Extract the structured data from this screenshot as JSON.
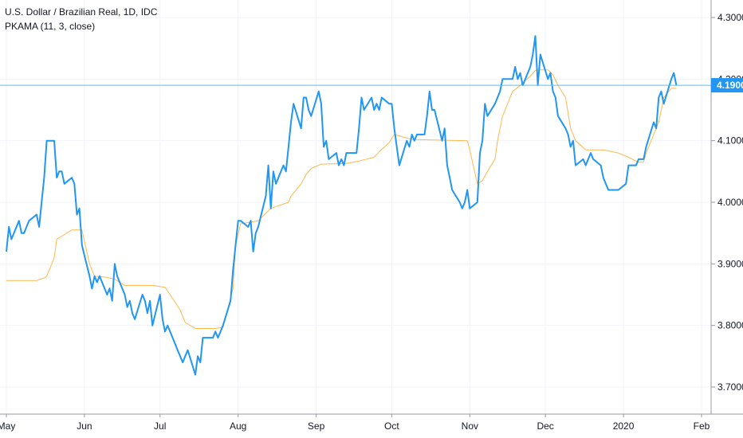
{
  "chart_data": {
    "type": "line",
    "title": "U.S. Dollar / Brazilian Real, 1D, IDC",
    "indicator_label": "PKAMA (11, 3, close)",
    "x_labels": [
      "May",
      "Jun",
      "Jul",
      "Aug",
      "Sep",
      "Oct",
      "Nov",
      "Dec",
      "2020",
      "Feb"
    ],
    "y_ticks": [
      "3.7000",
      "3.8000",
      "3.9000",
      "4.0000",
      "4.1000",
      "4.2000",
      "4.3000"
    ],
    "ylim": [
      3.68,
      4.33
    ],
    "last_price_label": "4.1900",
    "last_price": 4.19,
    "grid": true,
    "colors": {
      "price": "#2196f3",
      "indicator": "#ffb74d",
      "price_line": "#4fc3f7",
      "label_bg": "#2196f3",
      "grid": "#f0f3fa",
      "axis_border": "#9598a1"
    },
    "series": [
      {
        "name": "U.S. Dollar / Brazilian Real",
        "points": [
          [
            "2019-05-01",
            3.92
          ],
          [
            "2019-05-02",
            3.96
          ],
          [
            "2019-05-03",
            3.94
          ],
          [
            "2019-05-06",
            3.97
          ],
          [
            "2019-05-07",
            3.95
          ],
          [
            "2019-05-08",
            3.95
          ],
          [
            "2019-05-09",
            3.96
          ],
          [
            "2019-05-10",
            3.97
          ],
          [
            "2019-05-13",
            3.98
          ],
          [
            "2019-05-14",
            3.96
          ],
          [
            "2019-05-15",
            4.0
          ],
          [
            "2019-05-16",
            4.04
          ],
          [
            "2019-05-17",
            4.1
          ],
          [
            "2019-05-20",
            4.1
          ],
          [
            "2019-05-21",
            4.04
          ],
          [
            "2019-05-22",
            4.05
          ],
          [
            "2019-05-23",
            4.05
          ],
          [
            "2019-05-24",
            4.03
          ],
          [
            "2019-05-27",
            4.04
          ],
          [
            "2019-05-28",
            4.03
          ],
          [
            "2019-05-29",
            3.98
          ],
          [
            "2019-05-30",
            3.99
          ],
          [
            "2019-05-31",
            3.93
          ],
          [
            "2019-06-03",
            3.88
          ],
          [
            "2019-06-04",
            3.86
          ],
          [
            "2019-06-05",
            3.88
          ],
          [
            "2019-06-06",
            3.87
          ],
          [
            "2019-06-07",
            3.88
          ],
          [
            "2019-06-10",
            3.85
          ],
          [
            "2019-06-11",
            3.86
          ],
          [
            "2019-06-12",
            3.84
          ],
          [
            "2019-06-13",
            3.9
          ],
          [
            "2019-06-14",
            3.88
          ],
          [
            "2019-06-17",
            3.85
          ],
          [
            "2019-06-18",
            3.83
          ],
          [
            "2019-06-19",
            3.84
          ],
          [
            "2019-06-20",
            3.82
          ],
          [
            "2019-06-21",
            3.81
          ],
          [
            "2019-06-24",
            3.85
          ],
          [
            "2019-06-25",
            3.84
          ],
          [
            "2019-06-26",
            3.82
          ],
          [
            "2019-06-27",
            3.84
          ],
          [
            "2019-06-28",
            3.8
          ],
          [
            "2019-07-01",
            3.85
          ],
          [
            "2019-07-02",
            3.81
          ],
          [
            "2019-07-03",
            3.79
          ],
          [
            "2019-07-04",
            3.8
          ],
          [
            "2019-07-05",
            3.79
          ],
          [
            "2019-07-08",
            3.76
          ],
          [
            "2019-07-09",
            3.75
          ],
          [
            "2019-07-10",
            3.74
          ],
          [
            "2019-07-11",
            3.75
          ],
          [
            "2019-07-12",
            3.76
          ],
          [
            "2019-07-15",
            3.72
          ],
          [
            "2019-07-16",
            3.75
          ],
          [
            "2019-07-17",
            3.74
          ],
          [
            "2019-07-18",
            3.78
          ],
          [
            "2019-07-19",
            3.78
          ],
          [
            "2019-07-22",
            3.78
          ],
          [
            "2019-07-23",
            3.79
          ],
          [
            "2019-07-24",
            3.78
          ],
          [
            "2019-07-25",
            3.79
          ],
          [
            "2019-07-26",
            3.8
          ],
          [
            "2019-07-29",
            3.84
          ],
          [
            "2019-07-30",
            3.89
          ],
          [
            "2019-07-31",
            3.93
          ],
          [
            "2019-08-01",
            3.97
          ],
          [
            "2019-08-02",
            3.97
          ],
          [
            "2019-08-05",
            3.96
          ],
          [
            "2019-08-06",
            3.97
          ],
          [
            "2019-08-07",
            3.92
          ],
          [
            "2019-08-08",
            3.95
          ],
          [
            "2019-08-09",
            3.96
          ],
          [
            "2019-08-12",
            4.01
          ],
          [
            "2019-08-13",
            4.06
          ],
          [
            "2019-08-14",
            3.99
          ],
          [
            "2019-08-15",
            4.05
          ],
          [
            "2019-08-16",
            4.03
          ],
          [
            "2019-08-19",
            4.06
          ],
          [
            "2019-08-20",
            4.05
          ],
          [
            "2019-08-21",
            4.09
          ],
          [
            "2019-08-22",
            4.13
          ],
          [
            "2019-08-23",
            4.16
          ],
          [
            "2019-08-26",
            4.12
          ],
          [
            "2019-08-27",
            4.17
          ],
          [
            "2019-08-28",
            4.17
          ],
          [
            "2019-08-29",
            4.15
          ],
          [
            "2019-08-30",
            4.14
          ],
          [
            "2019-09-02",
            4.18
          ],
          [
            "2019-09-03",
            4.16
          ],
          [
            "2019-09-04",
            4.09
          ],
          [
            "2019-09-05",
            4.1
          ],
          [
            "2019-09-06",
            4.07
          ],
          [
            "2019-09-09",
            4.08
          ],
          [
            "2019-09-10",
            4.06
          ],
          [
            "2019-09-11",
            4.07
          ],
          [
            "2019-09-12",
            4.06
          ],
          [
            "2019-09-13",
            4.08
          ],
          [
            "2019-09-16",
            4.08
          ],
          [
            "2019-09-17",
            4.08
          ],
          [
            "2019-09-18",
            4.12
          ],
          [
            "2019-09-19",
            4.17
          ],
          [
            "2019-09-20",
            4.15
          ],
          [
            "2019-09-23",
            4.17
          ],
          [
            "2019-09-24",
            4.15
          ],
          [
            "2019-09-25",
            4.16
          ],
          [
            "2019-09-26",
            4.15
          ],
          [
            "2019-09-27",
            4.17
          ],
          [
            "2019-09-30",
            4.16
          ],
          [
            "2019-10-01",
            4.16
          ],
          [
            "2019-10-02",
            4.12
          ],
          [
            "2019-10-03",
            4.09
          ],
          [
            "2019-10-04",
            4.06
          ],
          [
            "2019-10-07",
            4.1
          ],
          [
            "2019-10-08",
            4.09
          ],
          [
            "2019-10-09",
            4.11
          ],
          [
            "2019-10-10",
            4.1
          ],
          [
            "2019-10-11",
            4.11
          ],
          [
            "2019-10-14",
            4.11
          ],
          [
            "2019-10-15",
            4.14
          ],
          [
            "2019-10-16",
            4.18
          ],
          [
            "2019-10-17",
            4.15
          ],
          [
            "2019-10-18",
            4.15
          ],
          [
            "2019-10-21",
            4.1
          ],
          [
            "2019-10-22",
            4.12
          ],
          [
            "2019-10-23",
            4.06
          ],
          [
            "2019-10-24",
            4.04
          ],
          [
            "2019-10-25",
            4.02
          ],
          [
            "2019-10-28",
            4.0
          ],
          [
            "2019-10-29",
            3.99
          ],
          [
            "2019-10-30",
            4.0
          ],
          [
            "2019-10-31",
            4.02
          ],
          [
            "2019-11-01",
            3.99
          ],
          [
            "2019-11-04",
            4.0
          ],
          [
            "2019-11-05",
            4.08
          ],
          [
            "2019-11-06",
            4.1
          ],
          [
            "2019-11-07",
            4.16
          ],
          [
            "2019-11-08",
            4.14
          ],
          [
            "2019-11-11",
            4.16
          ],
          [
            "2019-11-12",
            4.17
          ],
          [
            "2019-11-13",
            4.18
          ],
          [
            "2019-11-14",
            4.2
          ],
          [
            "2019-11-18",
            4.2
          ],
          [
            "2019-11-19",
            4.22
          ],
          [
            "2019-11-20",
            4.2
          ],
          [
            "2019-11-21",
            4.21
          ],
          [
            "2019-11-22",
            4.19
          ],
          [
            "2019-11-25",
            4.22
          ],
          [
            "2019-11-26",
            4.24
          ],
          [
            "2019-11-27",
            4.27
          ],
          [
            "2019-11-28",
            4.19
          ],
          [
            "2019-11-29",
            4.24
          ],
          [
            "2019-12-02",
            4.2
          ],
          [
            "2019-12-03",
            4.21
          ],
          [
            "2019-12-04",
            4.18
          ],
          [
            "2019-12-05",
            4.17
          ],
          [
            "2019-12-06",
            4.14
          ],
          [
            "2019-12-09",
            4.12
          ],
          [
            "2019-12-10",
            4.11
          ],
          [
            "2019-12-11",
            4.09
          ],
          [
            "2019-12-12",
            4.1
          ],
          [
            "2019-12-13",
            4.06
          ],
          [
            "2019-12-16",
            4.07
          ],
          [
            "2019-12-17",
            4.06
          ],
          [
            "2019-12-18",
            4.07
          ],
          [
            "2019-12-19",
            4.08
          ],
          [
            "2019-12-20",
            4.07
          ],
          [
            "2019-12-23",
            4.06
          ],
          [
            "2019-12-24",
            4.04
          ],
          [
            "2019-12-26",
            4.02
          ],
          [
            "2019-12-27",
            4.02
          ],
          [
            "2019-12-30",
            4.02
          ],
          [
            "2020-01-02",
            4.03
          ],
          [
            "2020-01-03",
            4.06
          ],
          [
            "2020-01-06",
            4.06
          ],
          [
            "2020-01-07",
            4.07
          ],
          [
            "2020-01-08",
            4.07
          ],
          [
            "2020-01-09",
            4.07
          ],
          [
            "2020-01-10",
            4.09
          ],
          [
            "2020-01-13",
            4.13
          ],
          [
            "2020-01-14",
            4.12
          ],
          [
            "2020-01-15",
            4.17
          ],
          [
            "2020-01-16",
            4.18
          ],
          [
            "2020-01-17",
            4.16
          ],
          [
            "2020-01-20",
            4.2
          ],
          [
            "2020-01-21",
            4.21
          ],
          [
            "2020-01-22",
            4.19
          ]
        ]
      },
      {
        "name": "PKAMA (11, 3, close)",
        "points": [
          [
            "2019-05-01",
            3.873
          ],
          [
            "2019-05-08",
            3.873
          ],
          [
            "2019-05-13",
            3.873
          ],
          [
            "2019-05-16",
            3.877
          ],
          [
            "2019-05-17",
            3.88
          ],
          [
            "2019-05-20",
            3.91
          ],
          [
            "2019-05-21",
            3.94
          ],
          [
            "2019-05-23",
            3.945
          ],
          [
            "2019-05-27",
            3.955
          ],
          [
            "2019-05-31",
            3.955
          ],
          [
            "2019-06-03",
            3.9
          ],
          [
            "2019-06-05",
            3.88
          ],
          [
            "2019-06-10",
            3.878
          ],
          [
            "2019-06-13",
            3.875
          ],
          [
            "2019-06-17",
            3.865
          ],
          [
            "2019-06-28",
            3.865
          ],
          [
            "2019-07-03",
            3.862
          ],
          [
            "2019-07-05",
            3.85
          ],
          [
            "2019-07-09",
            3.825
          ],
          [
            "2019-07-11",
            3.805
          ],
          [
            "2019-07-15",
            3.795
          ],
          [
            "2019-07-23",
            3.795
          ],
          [
            "2019-07-26",
            3.797
          ],
          [
            "2019-07-30",
            3.86
          ],
          [
            "2019-07-31",
            3.93
          ],
          [
            "2019-08-02",
            3.965
          ],
          [
            "2019-08-09",
            3.97
          ],
          [
            "2019-08-14",
            3.99
          ],
          [
            "2019-08-21",
            4.0
          ],
          [
            "2019-08-22",
            4.01
          ],
          [
            "2019-08-26",
            4.03
          ],
          [
            "2019-08-28",
            4.045
          ],
          [
            "2019-08-30",
            4.055
          ],
          [
            "2019-09-03",
            4.062
          ],
          [
            "2019-09-13",
            4.063
          ],
          [
            "2019-09-18",
            4.067
          ],
          [
            "2019-09-24",
            4.073
          ],
          [
            "2019-09-26",
            4.082
          ],
          [
            "2019-09-30",
            4.097
          ],
          [
            "2019-10-02",
            4.11
          ],
          [
            "2019-10-09",
            4.102
          ],
          [
            "2019-10-31",
            4.1
          ],
          [
            "2019-11-01",
            4.085
          ],
          [
            "2019-11-04",
            4.03
          ],
          [
            "2019-11-06",
            4.035
          ],
          [
            "2019-11-08",
            4.05
          ],
          [
            "2019-11-11",
            4.07
          ],
          [
            "2019-11-12",
            4.1
          ],
          [
            "2019-11-14",
            4.14
          ],
          [
            "2019-11-18",
            4.18
          ],
          [
            "2019-11-21",
            4.19
          ],
          [
            "2019-11-25",
            4.205
          ],
          [
            "2019-11-27",
            4.214
          ],
          [
            "2019-11-29",
            4.215
          ],
          [
            "2019-12-02",
            4.215
          ],
          [
            "2019-12-04",
            4.207
          ],
          [
            "2019-12-06",
            4.19
          ],
          [
            "2019-12-09",
            4.17
          ],
          [
            "2019-12-11",
            4.12
          ],
          [
            "2019-12-13",
            4.1
          ],
          [
            "2019-12-17",
            4.085
          ],
          [
            "2019-12-20",
            4.085
          ],
          [
            "2019-12-24",
            4.085
          ],
          [
            "2019-12-30",
            4.08
          ],
          [
            "2020-01-03",
            4.073
          ],
          [
            "2020-01-07",
            4.065
          ],
          [
            "2020-01-09",
            4.065
          ],
          [
            "2020-01-10",
            4.08
          ],
          [
            "2020-01-13",
            4.11
          ],
          [
            "2020-01-15",
            4.13
          ],
          [
            "2020-01-17",
            4.17
          ],
          [
            "2020-01-20",
            4.185
          ],
          [
            "2020-01-22",
            4.185
          ]
        ]
      }
    ]
  }
}
